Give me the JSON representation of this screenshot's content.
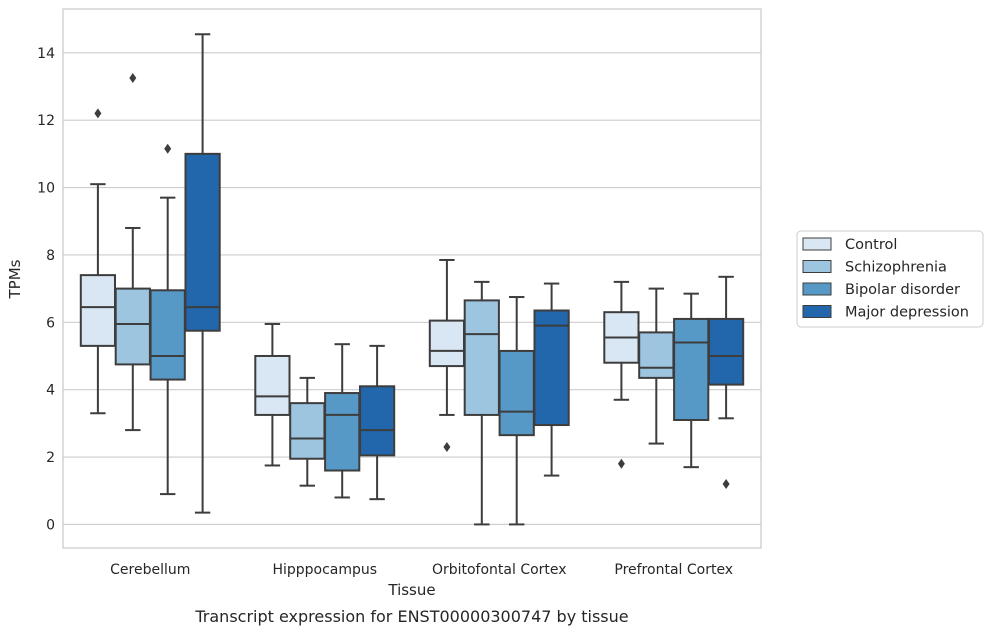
{
  "chart_data": {
    "type": "box",
    "title": "",
    "caption": "Transcript expression for ENST00000300747 by tissue",
    "xlabel": "Tissue",
    "ylabel": "TPMs",
    "ylim": [
      -0.7,
      15.3
    ],
    "yticks": [
      "0",
      "2",
      "4",
      "6",
      "8",
      "10",
      "12",
      "14"
    ],
    "grid": "horizontal",
    "legend_position": "right",
    "categories": [
      "Cerebellum",
      "Hipppocampus",
      "Orbitofontal Cortex",
      "Prefrontal Cortex"
    ],
    "series": [
      {
        "name": "Control",
        "color": "#d9e6f3",
        "boxes": [
          {
            "whislo": 3.3,
            "q1": 5.3,
            "med": 6.45,
            "q3": 7.4,
            "whishi": 10.1,
            "fliers": [
              12.2
            ]
          },
          {
            "whislo": 1.75,
            "q1": 3.25,
            "med": 3.8,
            "q3": 5.0,
            "whishi": 5.95,
            "fliers": []
          },
          {
            "whislo": 3.25,
            "q1": 4.7,
            "med": 5.15,
            "q3": 6.05,
            "whishi": 7.85,
            "fliers": [
              2.3
            ]
          },
          {
            "whislo": 3.7,
            "q1": 4.8,
            "med": 5.55,
            "q3": 6.3,
            "whishi": 7.2,
            "fliers": [
              1.8
            ]
          }
        ]
      },
      {
        "name": "Schizophrenia",
        "color": "#9dc5e0",
        "boxes": [
          {
            "whislo": 2.8,
            "q1": 4.75,
            "med": 5.95,
            "q3": 7.0,
            "whishi": 8.8,
            "fliers": [
              13.25
            ]
          },
          {
            "whislo": 1.15,
            "q1": 1.95,
            "med": 2.55,
            "q3": 3.6,
            "whishi": 4.35,
            "fliers": []
          },
          {
            "whislo": 0.0,
            "q1": 3.25,
            "med": 5.65,
            "q3": 6.65,
            "whishi": 7.2,
            "fliers": []
          },
          {
            "whislo": 2.4,
            "q1": 4.35,
            "med": 4.65,
            "q3": 5.7,
            "whishi": 7.0,
            "fliers": []
          }
        ]
      },
      {
        "name": "Bipolar disorder",
        "color": "#5799c6",
        "boxes": [
          {
            "whislo": 0.9,
            "q1": 4.3,
            "med": 5.0,
            "q3": 6.95,
            "whishi": 9.7,
            "fliers": [
              11.15
            ]
          },
          {
            "whislo": 0.8,
            "q1": 1.6,
            "med": 3.25,
            "q3": 3.9,
            "whishi": 5.35,
            "fliers": []
          },
          {
            "whislo": 0.0,
            "q1": 2.65,
            "med": 3.35,
            "q3": 5.15,
            "whishi": 6.75,
            "fliers": []
          },
          {
            "whislo": 1.7,
            "q1": 3.1,
            "med": 5.4,
            "q3": 6.1,
            "whishi": 6.85,
            "fliers": []
          }
        ]
      },
      {
        "name": "Major depression",
        "color": "#2266ac",
        "boxes": [
          {
            "whislo": 0.35,
            "q1": 5.75,
            "med": 6.45,
            "q3": 11.0,
            "whishi": 14.55,
            "fliers": []
          },
          {
            "whislo": 0.75,
            "q1": 2.05,
            "med": 2.8,
            "q3": 4.1,
            "whishi": 5.3,
            "fliers": []
          },
          {
            "whislo": 1.45,
            "q1": 2.95,
            "med": 5.9,
            "q3": 6.35,
            "whishi": 7.15,
            "fliers": []
          },
          {
            "whislo": 3.15,
            "q1": 4.15,
            "med": 5.0,
            "q3": 6.1,
            "whishi": 7.35,
            "fliers": [
              1.2
            ]
          }
        ]
      }
    ]
  }
}
